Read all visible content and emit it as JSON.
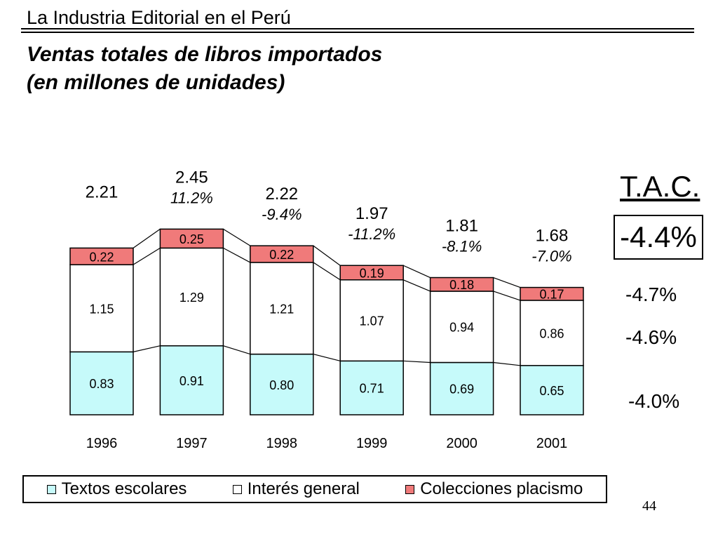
{
  "header": {
    "title": "La Industria Editorial en el Perú",
    "subtitle_line1": "Ventas totales de libros importados",
    "subtitle_line2": "(en millones de unidades)"
  },
  "chart_data": {
    "type": "bar",
    "stacked": true,
    "categories": [
      "1996",
      "1997",
      "1998",
      "1999",
      "2000",
      "2001"
    ],
    "series": [
      {
        "name": "Textos escolares",
        "color": "#c6fafa",
        "values": [
          0.83,
          0.91,
          0.8,
          0.71,
          0.69,
          0.65
        ]
      },
      {
        "name": "Interés general",
        "color": "#ffffff",
        "values": [
          1.15,
          1.29,
          1.21,
          1.07,
          0.94,
          0.86
        ]
      },
      {
        "name": "Colecciones placismo",
        "color": "#f07a7a",
        "values": [
          0.22,
          0.25,
          0.22,
          0.19,
          0.18,
          0.17
        ]
      }
    ],
    "totals": [
      "2.21",
      "2.45",
      "2.22",
      "1.97",
      "1.81",
      "1.68"
    ],
    "growth": [
      "",
      "11.2%",
      "-9.4%",
      "-11.2%",
      "-8.1%",
      "-7.0%"
    ],
    "value_labels": [
      [
        "0.83",
        "0.91",
        "0.80",
        "0.71",
        "0.69",
        "0.65"
      ],
      [
        "1.15",
        "1.29",
        "1.21",
        "1.07",
        "0.94",
        "0.86"
      ],
      [
        "0.22",
        "0.25",
        "0.22",
        "0.19",
        "0.18",
        "0.17"
      ]
    ],
    "ylim": [
      0,
      2.5
    ]
  },
  "tac": {
    "label": "T.A.C.",
    "total": "-4.4%",
    "colecciones": "-4.7%",
    "interes_general": "-4.6%",
    "textos_escolares": "-4.0%"
  },
  "legend": {
    "items": [
      "Textos escolares",
      "Interés general",
      "Colecciones placismo"
    ],
    "colors": [
      "#c6fafa",
      "#ffffff",
      "#f07a7a"
    ]
  },
  "page_number": "44"
}
